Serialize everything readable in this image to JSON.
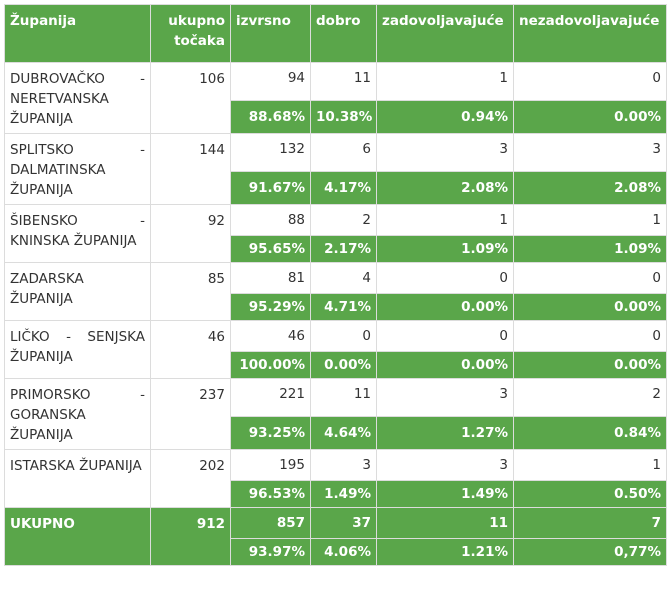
{
  "headers": [
    "Županija",
    "ukupno točaka",
    "izvrsno",
    "dobro",
    "zadovoljavajuće",
    "nezadovoljavajuće"
  ],
  "rows": [
    {
      "county": "DUBROVAČKO - NERETVANSKA ŽUPANIJA",
      "total": "106",
      "counts": [
        "94",
        "11",
        "1",
        "0"
      ],
      "percents": [
        "88.68%",
        "10.38%",
        "0.94%",
        "0.00%"
      ]
    },
    {
      "county": "SPLITSKO - DALMATINSKA ŽUPANIJA",
      "total": "144",
      "counts": [
        "132",
        "6",
        "3",
        "3"
      ],
      "percents": [
        "91.67%",
        "4.17%",
        "2.08%",
        "2.08%"
      ]
    },
    {
      "county": "ŠIBENSKO - KNINSKA ŽUPANIJA",
      "total": "92",
      "counts": [
        "88",
        "2",
        "1",
        "1"
      ],
      "percents": [
        "95.65%",
        "2.17%",
        "1.09%",
        "1.09%"
      ]
    },
    {
      "county": "ZADARSKA ŽUPANIJA",
      "total": "85",
      "counts": [
        "81",
        "4",
        "0",
        "0"
      ],
      "percents": [
        "95.29%",
        "4.71%",
        "0.00%",
        "0.00%"
      ]
    },
    {
      "county": "LIČKO - SENJSKA ŽUPANIJA",
      "total": "46",
      "counts": [
        "46",
        "0",
        "0",
        "0"
      ],
      "percents": [
        "100.00%",
        "0.00%",
        "0.00%",
        "0.00%"
      ]
    },
    {
      "county": "PRIMORSKO - GORANSKA ŽUPANIJA",
      "total": "237",
      "counts": [
        "221",
        "11",
        "3",
        "2"
      ],
      "percents": [
        "93.25%",
        "4.64%",
        "1.27%",
        "0.84%"
      ]
    },
    {
      "county": "ISTARSKA ŽUPANIJA",
      "total": "202",
      "counts": [
        "195",
        "3",
        "3",
        "1"
      ],
      "percents": [
        "96.53%",
        "1.49%",
        "1.49%",
        "0.50%"
      ]
    }
  ],
  "summary": {
    "county": "UKUPNO",
    "total": "912",
    "counts": [
      "857",
      "37",
      "11",
      "7"
    ],
    "percents": [
      "93.97%",
      "4.06%",
      "1.21%",
      "0,77%"
    ]
  },
  "colors": {
    "header_green": "#5aa64a",
    "text": "#333333",
    "border": "#dcdcdc"
  }
}
